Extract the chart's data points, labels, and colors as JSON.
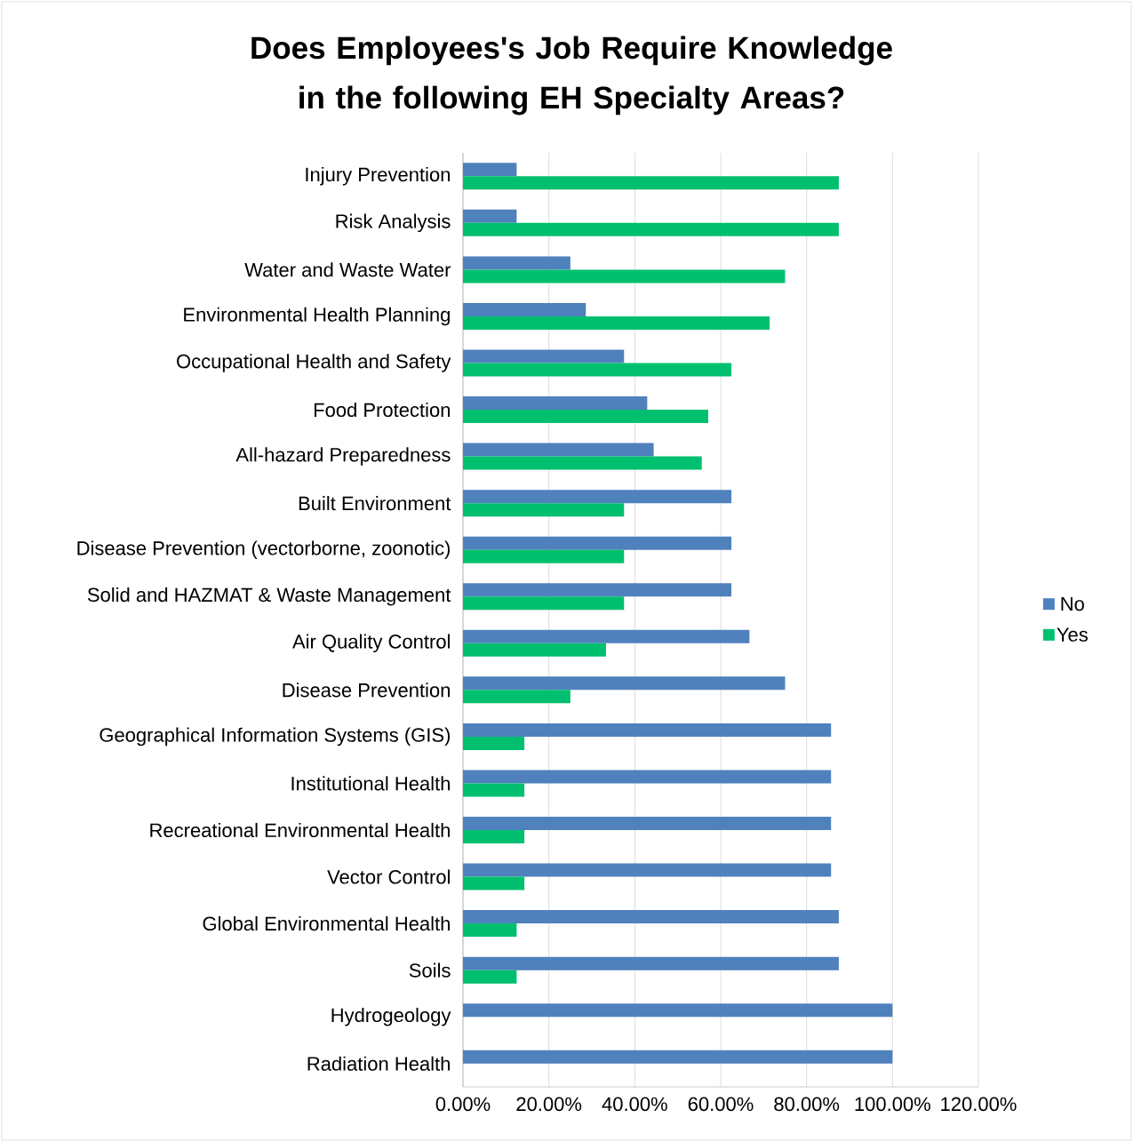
{
  "chart_data": {
    "type": "bar",
    "orientation": "horizontal",
    "title": "Does  Employees's Job Require Knowledge in the following EH Specialty Areas?",
    "categories": [
      "Injury Prevention",
      "Risk Analysis",
      "Water and Waste Water",
      "Environmental Health Planning",
      "Occupational Health and Safety",
      "Food Protection",
      "All-hazard Preparedness",
      "Built Environment",
      "Disease Prevention (vectorborne, zoonotic)",
      "Solid and HAZMAT & Waste Management",
      "Air Quality Control",
      "Disease Prevention",
      "Geographical Information Systems (GIS)",
      "Institutional Health",
      "Recreational Environmental Health",
      "Vector Control",
      "Global Environmental Health",
      "Soils",
      "Hydrogeology",
      "Radiation Health"
    ],
    "series": [
      {
        "name": "No",
        "color": "#4f81bd",
        "values": [
          12.5,
          12.5,
          25,
          28.6,
          37.5,
          42.9,
          44.4,
          62.5,
          62.5,
          62.5,
          66.7,
          75,
          85.7,
          85.7,
          85.7,
          85.7,
          87.5,
          87.5,
          100,
          100
        ]
      },
      {
        "name": "Yes",
        "color": "#00c06f",
        "values": [
          87.5,
          87.5,
          75,
          71.4,
          62.5,
          57.1,
          55.6,
          37.5,
          37.5,
          37.5,
          33.3,
          25,
          14.3,
          14.3,
          14.3,
          14.3,
          12.5,
          12.5,
          0,
          0
        ]
      }
    ],
    "xlim": [
      0,
      120
    ],
    "xticks": [
      {
        "value": 0,
        "label": "0.00%"
      },
      {
        "value": 20,
        "label": "20.00%"
      },
      {
        "value": 40,
        "label": "40.00%"
      },
      {
        "value": 60,
        "label": "60.00%"
      },
      {
        "value": 80,
        "label": "80.00%"
      },
      {
        "value": 100,
        "label": "100.00%"
      },
      {
        "value": 120,
        "label": "120.00%"
      }
    ],
    "grid": "x",
    "legend": "right"
  }
}
